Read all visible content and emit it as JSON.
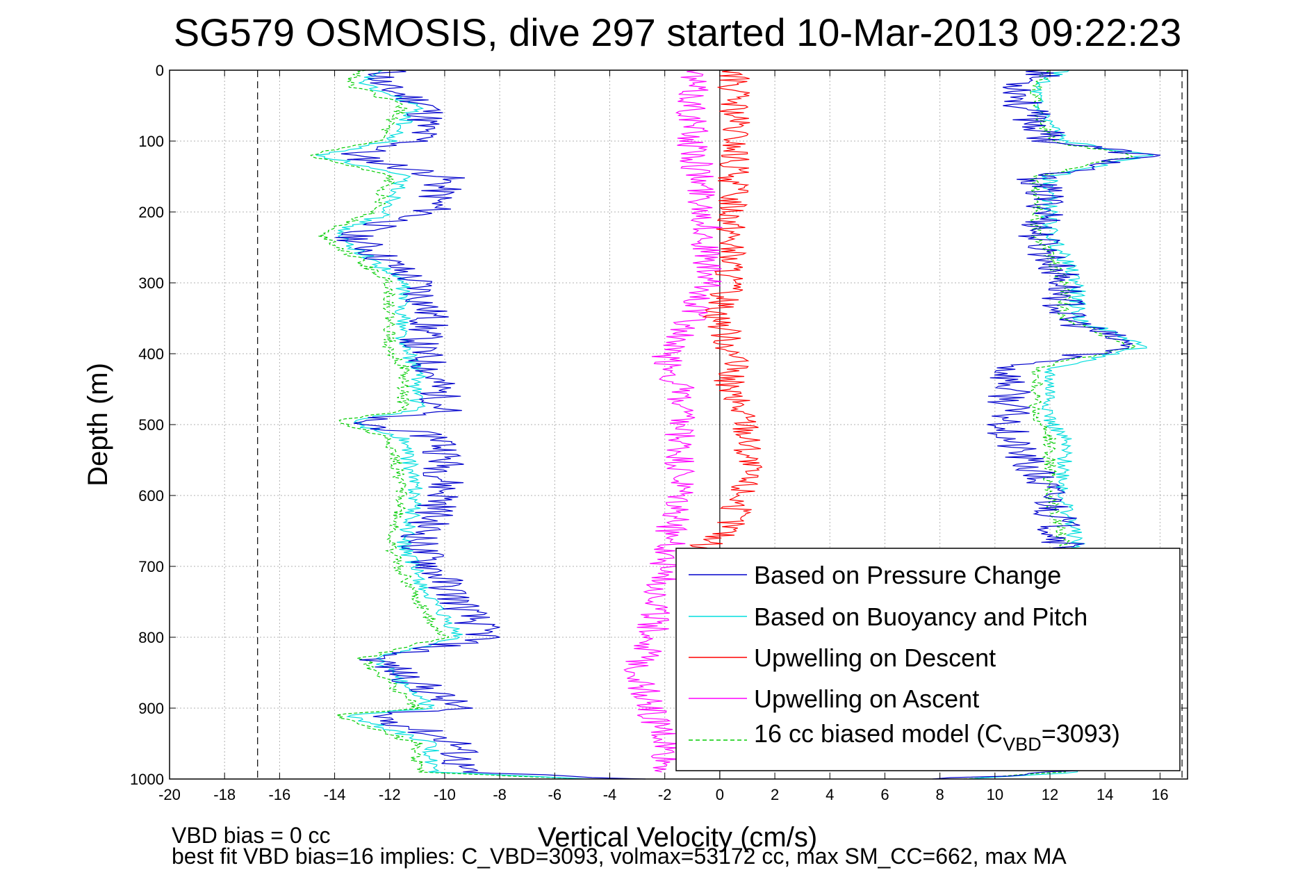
{
  "chart_data": {
    "type": "line",
    "title": "SG579 OSMOSIS, dive 297 started 10-Mar-2013 09:22:23",
    "xlabel": "Vertical Velocity (cm/s)",
    "ylabel": "Depth (m)",
    "xlim": [
      -20,
      17
    ],
    "ylim": [
      0,
      1000
    ],
    "y_reversed": true,
    "grid": true,
    "legend_position": "bottom-right",
    "x_ticks": [
      "-20",
      "-18",
      "-16",
      "-14",
      "-12",
      "-10",
      "-8",
      "-6",
      "-4",
      "-2",
      "0",
      "2",
      "4",
      "6",
      "8",
      "10",
      "12",
      "14",
      "16"
    ],
    "y_ticks": [
      "0",
      "100",
      "200",
      "300",
      "400",
      "500",
      "600",
      "700",
      "800",
      "900",
      "1000"
    ],
    "reference_lines_x": [
      -16.8,
      0,
      16.8
    ],
    "depth": [
      0,
      20,
      50,
      100,
      120,
      150,
      200,
      230,
      300,
      350,
      390,
      420,
      480,
      495,
      520,
      600,
      670,
      750,
      800,
      830,
      900,
      910,
      950,
      990,
      1000
    ],
    "series": [
      {
        "name": "Based on Pressure Change",
        "color": "#0000cc",
        "dash": "solid",
        "noise": 0.8,
        "descent_velocity": [
          -12,
          -12.5,
          -10.5,
          -11,
          -13.5,
          -10,
          -10.5,
          -13.5,
          -11,
          -10.5,
          -11,
          -10.5,
          -10,
          -13.5,
          -10,
          -10,
          -11,
          -9.5,
          -8.5,
          -12.5,
          -9.5,
          -12.5,
          -9.5,
          -9.5,
          -3
        ],
        "ascent_velocity": [
          12,
          11,
          11,
          12,
          15.5,
          11.5,
          12,
          11.5,
          12.5,
          12.5,
          15,
          10.5,
          10.5,
          10.5,
          10.5,
          12,
          12.5,
          12.5,
          12.5,
          12.5,
          12.5,
          12.5,
          12.5,
          12.5,
          8
        ]
      },
      {
        "name": "Based on Buoyancy and Pitch",
        "color": "#00dddd",
        "dash": "solid",
        "noise": 0.3,
        "descent_velocity": [
          -12.5,
          -13,
          -11,
          -12,
          -14.5,
          -11.5,
          -12,
          -14,
          -11.5,
          -11.5,
          -11.5,
          -11,
          -11,
          -13.5,
          -11.5,
          -11,
          -11.5,
          -10.5,
          -9.5,
          -12.5,
          -10.5,
          -13.5,
          -10.5,
          -10.5,
          -5
        ],
        "ascent_velocity": [
          12.5,
          11.5,
          11.5,
          12.5,
          15.5,
          12,
          12,
          12,
          13,
          13,
          15.5,
          12,
          12,
          12,
          12.5,
          12.5,
          13,
          13,
          13,
          13,
          13,
          13,
          13,
          13,
          9
        ]
      },
      {
        "name": "Upwelling on Descent",
        "color": "#ff0000",
        "dash": "solid",
        "noise": 0.6,
        "w_depth": [
          0,
          50,
          100,
          200,
          300,
          350,
          400,
          450,
          500,
          550,
          600,
          650,
          680
        ],
        "w_velocity": [
          0.5,
          0.5,
          0.5,
          0.5,
          0.3,
          0,
          0.5,
          0.3,
          1,
          1,
          0.8,
          0.3,
          -1
        ]
      },
      {
        "name": "Upwelling on Ascent",
        "color": "#ff00ff",
        "dash": "solid",
        "noise": 0.6,
        "w_depth": [
          0,
          50,
          100,
          200,
          300,
          350,
          400,
          450,
          500,
          600,
          700,
          800,
          850,
          900,
          950,
          990
        ],
        "w_velocity": [
          -1,
          -1,
          -1,
          -0.5,
          -0.5,
          -1,
          -2,
          -1.5,
          -1.5,
          -1.5,
          -2,
          -2.5,
          -3,
          -2.5,
          -2,
          -2
        ]
      },
      {
        "name": "16 cc biased model (C_VBD=3093)",
        "label_main": "16 cc biased model (C",
        "label_sub": "VBD",
        "label_tail": "=3093)",
        "color": "#00cc00",
        "dash": "dashed",
        "noise": 0.25,
        "descent_velocity": [
          -13,
          -13.5,
          -11.5,
          -12.5,
          -15,
          -12,
          -12.5,
          -14.5,
          -12,
          -12,
          -12,
          -11.5,
          -11.5,
          -14,
          -12,
          -11.5,
          -12,
          -11,
          -10,
          -13,
          -11,
          -14,
          -11,
          -11,
          -5
        ],
        "ascent_velocity": [
          12,
          11.5,
          11.5,
          12,
          15,
          11.5,
          11.5,
          11.5,
          12.5,
          12.5,
          15,
          11.5,
          11.5,
          11.5,
          12,
          12,
          12.5,
          12.5,
          12.5,
          12.5,
          12.5,
          12.5,
          12.5,
          12.5,
          9
        ]
      }
    ],
    "footnotes": [
      "VBD bias = 0 cc",
      "best fit VBD bias=16 implies: C_VBD=3093, volmax=53172 cc, max SM_CC=662, max MA"
    ]
  }
}
